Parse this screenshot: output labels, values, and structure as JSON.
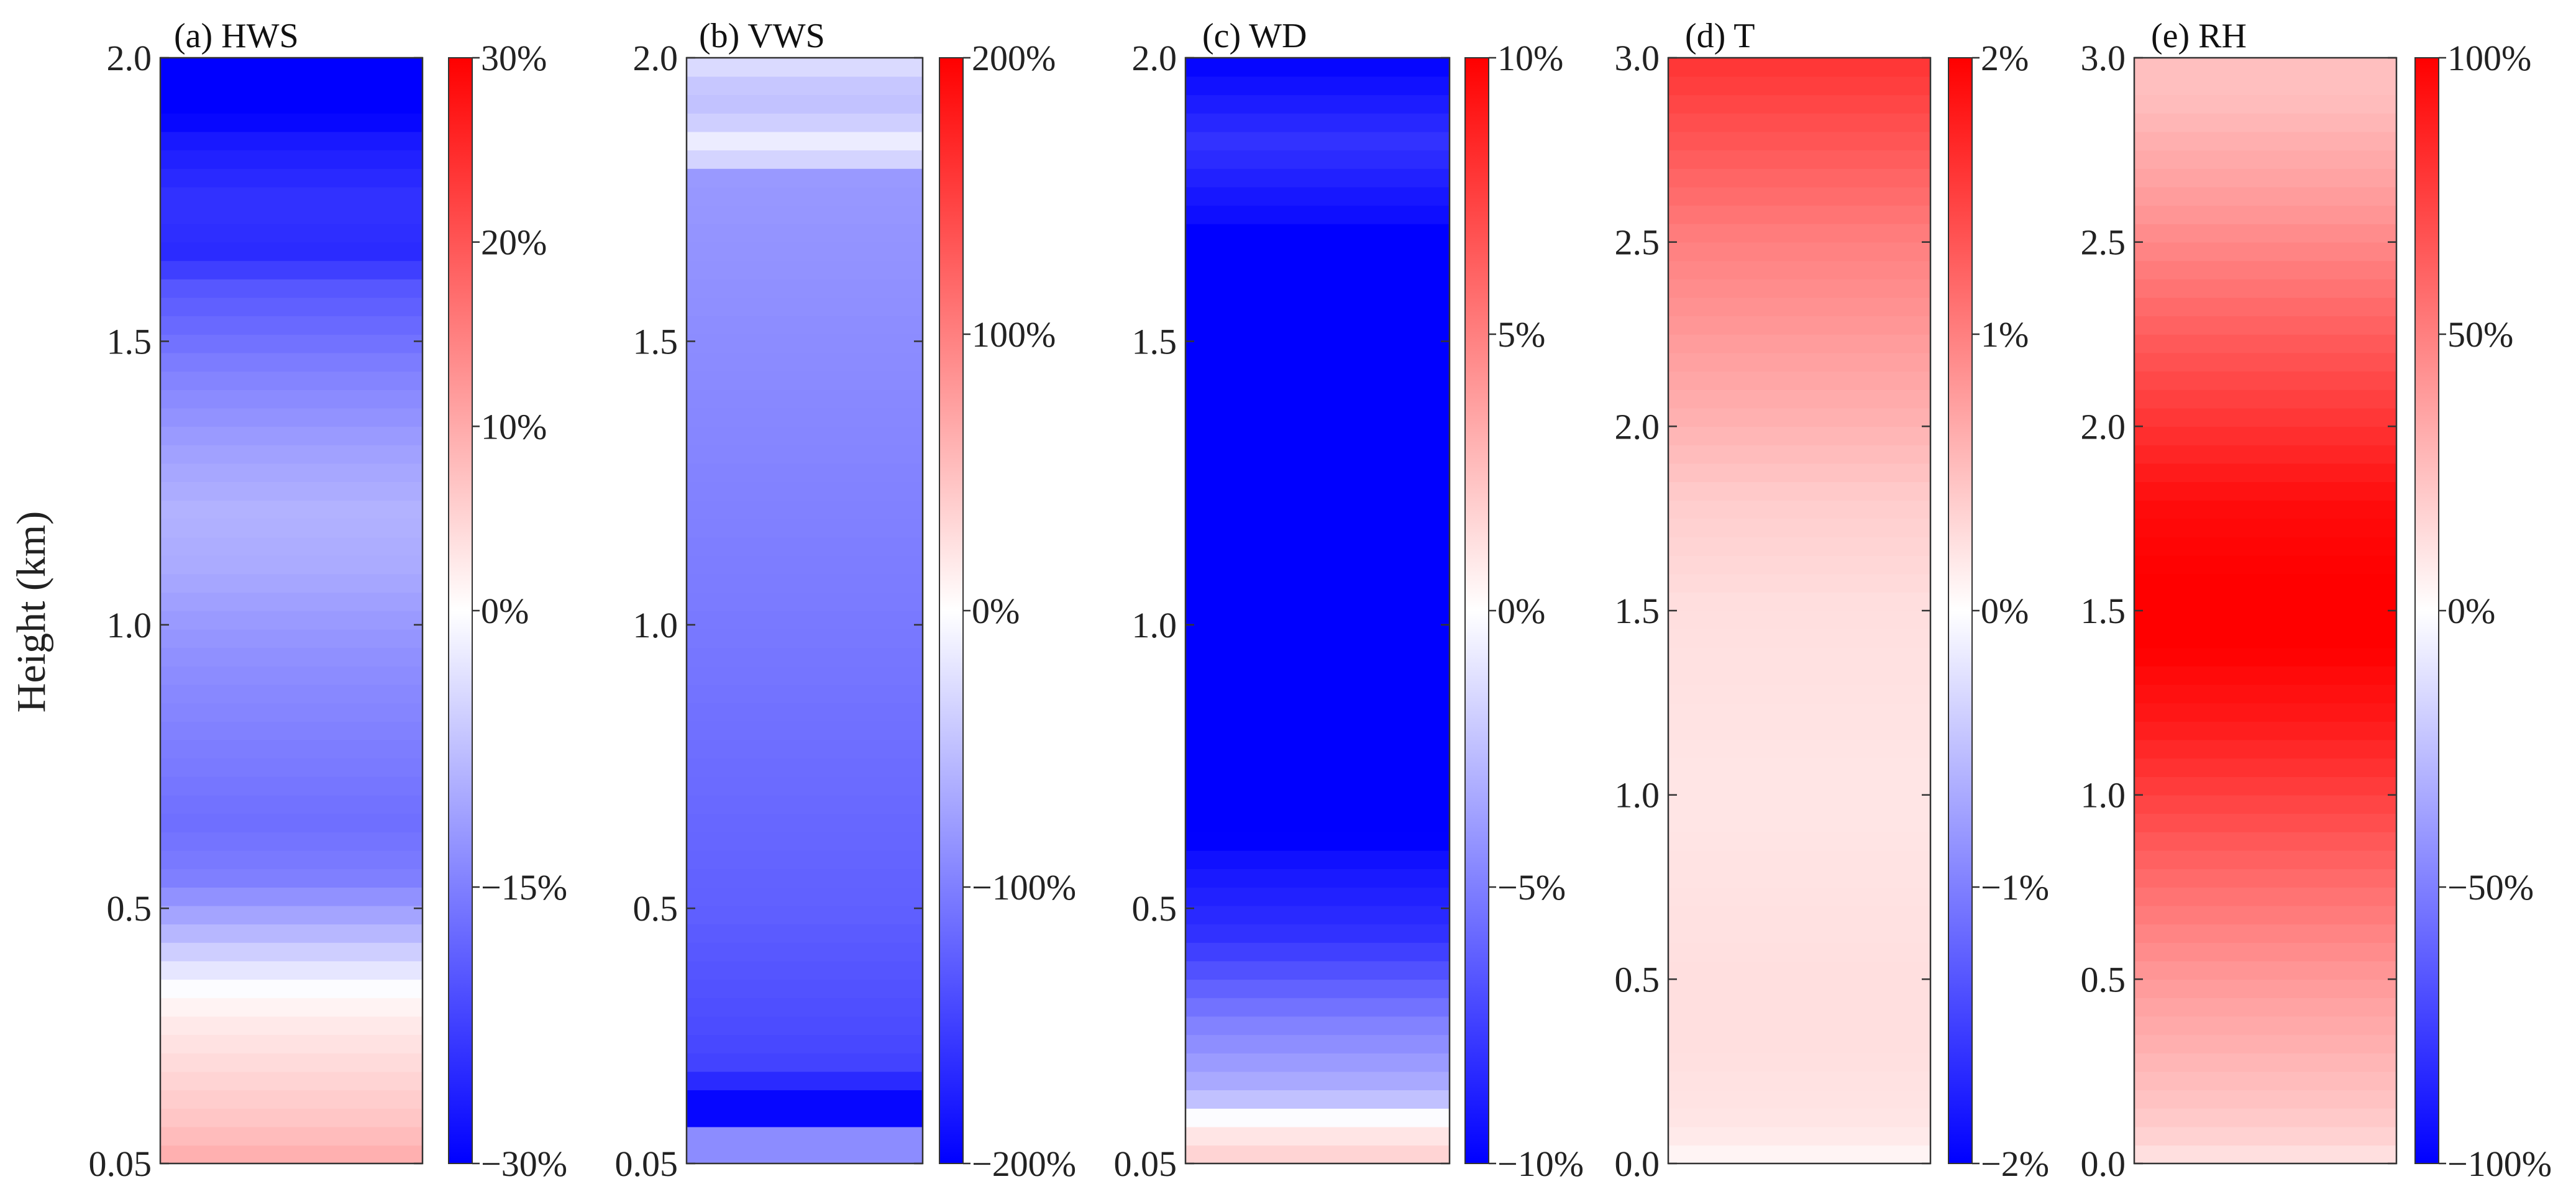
{
  "chart_data": [
    {
      "type": "heatmap",
      "title": "(a) HWS",
      "ylabel": "Height (km)",
      "ylim": [
        0.05,
        2.0
      ],
      "yticks": [
        "2.0",
        "1.5",
        "1.0",
        "0.5",
        "0.05"
      ],
      "ytick_values": [
        2.0,
        1.5,
        1.0,
        0.5,
        0.05
      ],
      "colorbar": {
        "range": [
          -30,
          30
        ],
        "ticks": [
          30,
          20,
          10,
          0,
          -15,
          -30
        ],
        "labels": [
          "30%",
          "20%",
          "10%",
          "0%",
          "−15%",
          "−30%"
        ]
      },
      "profile": {
        "heights": [
          0.05,
          0.12,
          0.2,
          0.28,
          0.34,
          0.38,
          0.45,
          0.55,
          0.65,
          0.8,
          0.95,
          1.1,
          1.2,
          1.3,
          1.45,
          1.6,
          1.65,
          1.75,
          1.85,
          1.9,
          2.0
        ],
        "values": [
          10,
          7,
          5,
          3,
          1,
          -2,
          -8,
          -15,
          -17,
          -15,
          -13,
          -10,
          -9,
          -11,
          -15,
          -20,
          -25,
          -24,
          -27,
          -30,
          -30
        ]
      }
    },
    {
      "type": "heatmap",
      "title": "(b) VWS",
      "ylim": [
        0.05,
        2.0
      ],
      "yticks": [
        "2.0",
        "1.5",
        "1.0",
        "0.5",
        "0.05"
      ],
      "ytick_values": [
        2.0,
        1.5,
        1.0,
        0.5,
        0.05
      ],
      "colorbar": {
        "range": [
          -200,
          200
        ],
        "ticks": [
          200,
          100,
          0,
          -100,
          -200
        ],
        "labels": [
          "200%",
          "100%",
          "0%",
          "−100%",
          "−200%"
        ]
      },
      "profile": {
        "heights": [
          0.05,
          0.1,
          0.105,
          0.19,
          0.2,
          0.3,
          0.5,
          1.0,
          1.5,
          1.8,
          1.83,
          1.86,
          1.9,
          1.98,
          2.0
        ],
        "values": [
          -90,
          -90,
          -195,
          -195,
          -150,
          -140,
          -125,
          -105,
          -90,
          -80,
          -15,
          -15,
          -50,
          -40,
          20
        ]
      }
    },
    {
      "type": "heatmap",
      "title": "(c) WD",
      "ylim": [
        0.05,
        2.0
      ],
      "yticks": [
        "2.0",
        "1.5",
        "1.0",
        "0.5",
        "0.05"
      ],
      "ytick_values": [
        2.0,
        1.5,
        1.0,
        0.5,
        0.05
      ],
      "colorbar": {
        "range": [
          -10,
          10
        ],
        "ticks": [
          10,
          5,
          0,
          -5,
          -10
        ],
        "labels": [
          "10%",
          "5%",
          "0%",
          "−5%",
          "−10%"
        ]
      },
      "profile": {
        "heights": [
          0.05,
          0.1,
          0.13,
          0.15,
          0.2,
          0.3,
          0.45,
          0.6,
          0.62,
          1.7,
          1.72,
          1.85,
          2.0
        ],
        "values": [
          2,
          1,
          0,
          -2,
          -3.5,
          -5,
          -8,
          -9.5,
          -10,
          -10,
          -9.5,
          -8,
          -10
        ]
      }
    },
    {
      "type": "heatmap",
      "title": "(d) T",
      "ylim": [
        0.0,
        3.0
      ],
      "yticks": [
        "3.0",
        "2.5",
        "2.0",
        "1.5",
        "1.0",
        "0.5",
        "0.0"
      ],
      "ytick_values": [
        3.0,
        2.5,
        2.0,
        1.5,
        1.0,
        0.5,
        0.0
      ],
      "colorbar": {
        "range": [
          -2,
          2
        ],
        "ticks": [
          2,
          1,
          0,
          -1,
          -2
        ],
        "labels": [
          "2%",
          "1%",
          "0%",
          "−1%",
          "−2%"
        ]
      },
      "profile": {
        "heights": [
          0.0,
          0.1,
          0.3,
          0.5,
          1.0,
          1.5,
          1.8,
          2.0,
          2.5,
          3.0
        ],
        "values": [
          0.05,
          0.2,
          0.25,
          0.25,
          0.2,
          0.25,
          0.4,
          0.6,
          1.0,
          1.6
        ]
      }
    },
    {
      "type": "heatmap",
      "title": "(e) RH",
      "ylim": [
        0.0,
        3.0
      ],
      "yticks": [
        "3.0",
        "2.5",
        "2.0",
        "1.5",
        "1.0",
        "0.5",
        "0.0"
      ],
      "ytick_values": [
        3.0,
        2.5,
        2.0,
        1.5,
        1.0,
        0.5,
        0.0
      ],
      "colorbar": {
        "range": [
          -100,
          100
        ],
        "ticks": [
          100,
          50,
          0,
          -50,
          -100
        ],
        "labels": [
          "100%",
          "50%",
          "0%",
          "−50%",
          "−100%"
        ]
      },
      "profile": {
        "heights": [
          0.0,
          0.1,
          0.3,
          0.5,
          0.8,
          1.0,
          1.2,
          1.4,
          1.6,
          1.8,
          2.0,
          2.3,
          2.6,
          2.9,
          3.0
        ],
        "values": [
          10,
          20,
          30,
          40,
          60,
          75,
          90,
          100,
          100,
          95,
          80,
          60,
          40,
          25,
          25
        ]
      }
    }
  ]
}
